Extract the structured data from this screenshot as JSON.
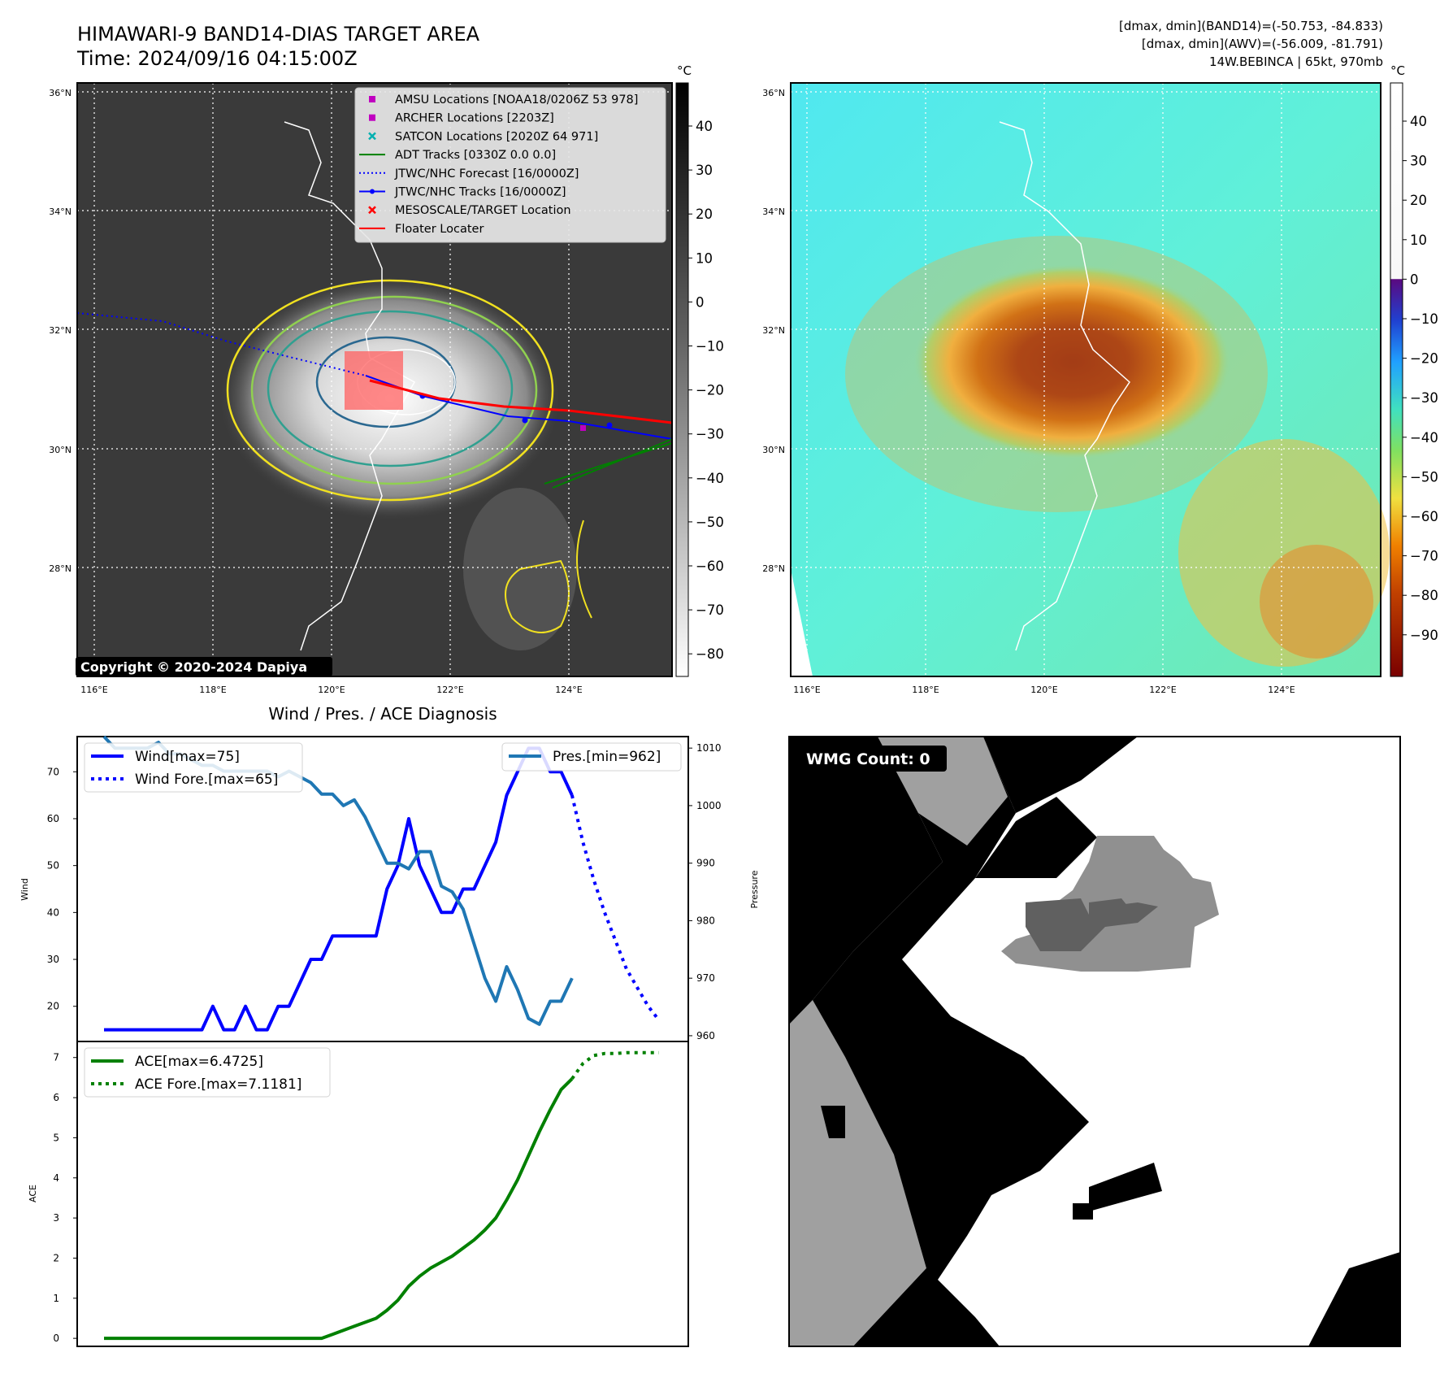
{
  "header": {
    "title_line1": "HIMAWARI-9 BAND14-DIAS TARGET AREA",
    "title_line2": "Time: 2024/09/16 04:15:00Z",
    "right_line1": "[dmax, dmin](BAND14)=(-50.753, -84.833)",
    "right_line2": "[dmax, dmin](AWV)=(-56.009, -81.791)",
    "right_line3": "14W.BEBINCA | 65kt, 970mb"
  },
  "ir_panel": {
    "colorbar_unit": "°C",
    "colorbar_ticks": [
      "40",
      "30",
      "20",
      "10",
      "0",
      "−10",
      "−20",
      "−30",
      "−40",
      "−50",
      "−60",
      "−70",
      "−80"
    ],
    "lat_labels": [
      "36°N",
      "34°N",
      "32°N",
      "30°N",
      "28°N"
    ],
    "lon_labels": [
      "116°E",
      "118°E",
      "120°E",
      "122°E",
      "124°E"
    ],
    "copyright": "Copyright © 2020-2024 Dapiya",
    "legend": [
      {
        "label": "AMSU Locations [NOAA18/0206Z 53 978]",
        "marker": "square",
        "color": "#c000c0"
      },
      {
        "label": "ARCHER Locations [2203Z]",
        "marker": "square",
        "color": "#c000c0"
      },
      {
        "label": "SATCON Locations [2020Z 64 971]",
        "marker": "x",
        "color": "#00b0b0"
      },
      {
        "label": "ADT Tracks [0330Z 0.0 0.0]",
        "marker": "line",
        "color": "#008000"
      },
      {
        "label": "JTWC/NHC Forecast [16/0000Z]",
        "marker": "dotted",
        "color": "#0000ff"
      },
      {
        "label": "JTWC/NHC Tracks [16/0000Z]",
        "marker": "line-dot",
        "color": "#0000ff"
      },
      {
        "label": "MESOSCALE/TARGET Location",
        "marker": "x",
        "color": "#ff0000"
      },
      {
        "label": "Floater Locater",
        "marker": "line",
        "color": "#ff0000"
      }
    ]
  },
  "awv_panel": {
    "colorbar_unit": "°C",
    "colorbar_ticks": [
      "40",
      "30",
      "20",
      "10",
      "0",
      "−10",
      "−20",
      "−30",
      "−40",
      "−50",
      "−60",
      "−70",
      "−80",
      "−90"
    ],
    "lat_labels": [
      "36°N",
      "34°N",
      "32°N",
      "30°N",
      "28°N"
    ],
    "lon_labels": [
      "116°E",
      "118°E",
      "120°E",
      "122°E",
      "124°E"
    ]
  },
  "wmg_panel": {
    "label": "WMG Count: 0"
  },
  "chart_data": [
    {
      "type": "line",
      "title": "Wind / Pres. / ACE Diagnosis",
      "ylabel": "Wind",
      "y2label": "Pressure",
      "ylim": [
        12.5,
        77.5
      ],
      "y2lim": [
        959,
        1012
      ],
      "yticks": [
        20,
        30,
        40,
        50,
        60,
        70
      ],
      "y2ticks": [
        960,
        970,
        980,
        990,
        1000,
        1010
      ],
      "series": [
        {
          "name": "Wind[max=75]",
          "style": "solid",
          "color": "#0000ff",
          "values": [
            15,
            15,
            15,
            15,
            15,
            15,
            15,
            15,
            15,
            15,
            20,
            15,
            15,
            20,
            15,
            15,
            20,
            20,
            25,
            30,
            30,
            35,
            35,
            35,
            35,
            35,
            45,
            50,
            60,
            50,
            45,
            40,
            40,
            45,
            45,
            50,
            55,
            65,
            70,
            75,
            75,
            70,
            70,
            65
          ]
        },
        {
          "name": "Wind Fore.[max=65]",
          "style": "dotted",
          "color": "#0000ff",
          "x_start": 43,
          "values": [
            65,
            55,
            47,
            40,
            34,
            28,
            24,
            20,
            17
          ]
        },
        {
          "name": "Pres.[min=962]",
          "style": "solid",
          "color": "#1f77b4",
          "axis": "y2",
          "values": [
            1012,
            1010,
            1010,
            1010,
            1010,
            1011,
            1009,
            1009,
            1008,
            1007,
            1007,
            1006,
            1006,
            1006,
            1006,
            1006,
            1005,
            1006,
            1005,
            1004,
            1002,
            1002,
            1000,
            1001,
            998,
            994,
            990,
            990,
            989,
            992,
            992,
            986,
            985,
            982,
            976,
            970,
            966,
            972,
            968,
            963,
            962,
            966,
            966,
            970
          ]
        }
      ]
    },
    {
      "type": "line",
      "ylabel": "ACE",
      "ylim": [
        -0.2,
        7.4
      ],
      "yticks": [
        0,
        1,
        2,
        3,
        4,
        5,
        6,
        7
      ],
      "series": [
        {
          "name": "ACE[max=6.4725]",
          "style": "solid",
          "color": "#008000",
          "values": [
            0,
            0,
            0,
            0,
            0,
            0,
            0,
            0,
            0,
            0,
            0,
            0,
            0,
            0,
            0,
            0,
            0,
            0,
            0,
            0,
            0,
            0.1,
            0.2,
            0.3,
            0.4,
            0.5,
            0.7,
            0.95,
            1.3,
            1.55,
            1.75,
            1.9,
            2.05,
            2.25,
            2.45,
            2.7,
            3.0,
            3.45,
            3.95,
            4.55,
            5.15,
            5.7,
            6.2,
            6.47
          ]
        },
        {
          "name": "ACE Fore.[max=7.1181]",
          "style": "dotted",
          "color": "#008000",
          "x_start": 43,
          "values": [
            6.47,
            6.85,
            7.05,
            7.1,
            7.1,
            7.12,
            7.12,
            7.12,
            7.12
          ]
        }
      ]
    }
  ]
}
